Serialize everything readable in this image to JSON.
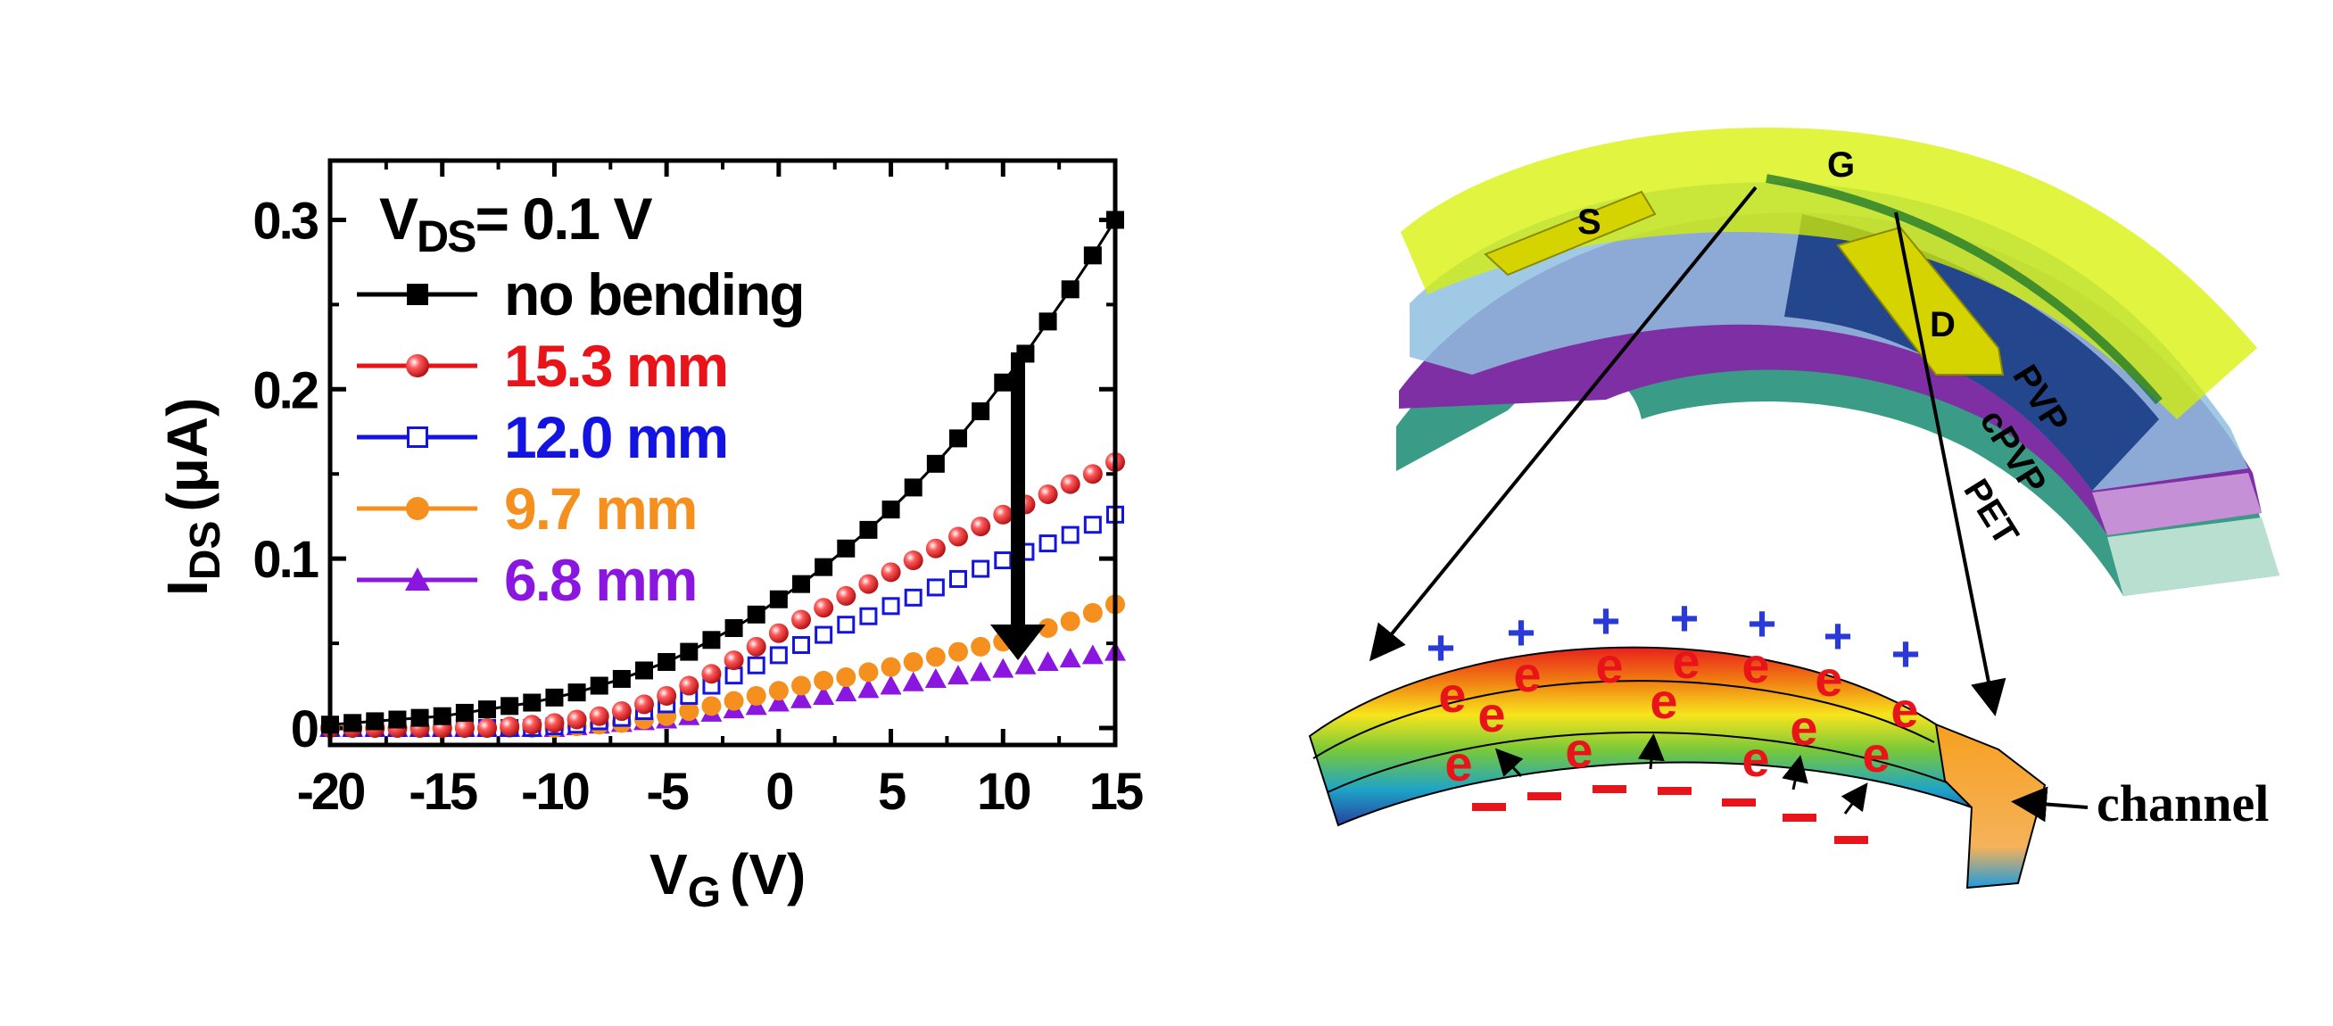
{
  "chart_data": {
    "type": "scatter",
    "title": "",
    "annotation": "= 0.1 V",
    "annotation_var": "V",
    "annotation_sub": "DS",
    "xlabel_var": "V",
    "xlabel_sub": "G",
    "xlabel_unit": "(V)",
    "ylabel_var": "I",
    "ylabel_sub": "DS",
    "ylabel_unit": "(μA)",
    "xlim": [
      -20,
      15
    ],
    "ylim": [
      -0.01,
      0.335
    ],
    "xticks": [
      -20,
      -15,
      -10,
      -5,
      0,
      5,
      10,
      15
    ],
    "xtick_labels": [
      "-20",
      "-15",
      "-10",
      "-5",
      "0",
      "5",
      "10",
      "15"
    ],
    "yticks": [
      0,
      0.1,
      0.2,
      0.3
    ],
    "ytick_labels": [
      "0",
      "0.1",
      "0.2",
      "0.3"
    ],
    "grid": false,
    "legend_position": "top-left",
    "x": [
      -20,
      -19,
      -18,
      -17,
      -16,
      -15,
      -14,
      -13,
      -12,
      -11,
      -10,
      -9,
      -8,
      -7,
      -6,
      -5,
      -4,
      -3,
      -2,
      -1,
      0,
      1,
      2,
      3,
      4,
      5,
      6,
      7,
      8,
      9,
      10,
      11,
      12,
      13,
      14,
      15
    ],
    "series": [
      {
        "name": "no bending",
        "color": "#000000",
        "marker": "square-filled",
        "values": [
          0.002,
          0.003,
          0.004,
          0.005,
          0.006,
          0.007,
          0.009,
          0.011,
          0.013,
          0.015,
          0.018,
          0.021,
          0.025,
          0.029,
          0.034,
          0.039,
          0.045,
          0.052,
          0.059,
          0.067,
          0.076,
          0.085,
          0.095,
          0.106,
          0.117,
          0.129,
          0.142,
          0.156,
          0.171,
          0.187,
          0.204,
          0.221,
          0.24,
          0.259,
          0.279,
          0.3
        ]
      },
      {
        "name": "15.3 mm",
        "color": "#e8141a",
        "marker": "sphere",
        "values": [
          0,
          0,
          0,
          0,
          0,
          0,
          0,
          0,
          0.001,
          0.002,
          0.003,
          0.005,
          0.007,
          0.01,
          0.014,
          0.019,
          0.025,
          0.032,
          0.04,
          0.048,
          0.056,
          0.064,
          0.071,
          0.078,
          0.085,
          0.092,
          0.099,
          0.106,
          0.113,
          0.119,
          0.126,
          0.132,
          0.138,
          0.144,
          0.15,
          0.157
        ]
      },
      {
        "name": "12.0 mm",
        "color": "#1414e0",
        "marker": "square-open",
        "values": [
          0,
          0,
          0,
          0,
          0,
          0,
          0,
          0,
          0,
          0,
          0.001,
          0.002,
          0.004,
          0.006,
          0.01,
          0.014,
          0.019,
          0.025,
          0.031,
          0.037,
          0.043,
          0.049,
          0.055,
          0.061,
          0.066,
          0.072,
          0.077,
          0.083,
          0.088,
          0.094,
          0.099,
          0.104,
          0.109,
          0.114,
          0.12,
          0.126
        ]
      },
      {
        "name": "9.7 mm",
        "color": "#f5901e",
        "marker": "circle-filled",
        "values": [
          0,
          0,
          0,
          0,
          0,
          0,
          0,
          0,
          0,
          0,
          0,
          0.001,
          0.002,
          0.003,
          0.005,
          0.007,
          0.01,
          0.013,
          0.016,
          0.019,
          0.022,
          0.025,
          0.028,
          0.03,
          0.033,
          0.036,
          0.039,
          0.042,
          0.045,
          0.048,
          0.051,
          0.055,
          0.059,
          0.063,
          0.068,
          0.073
        ]
      },
      {
        "name": "6.8 mm",
        "color": "#8a16e0",
        "marker": "triangle-filled",
        "values": [
          0,
          0,
          0,
          0,
          0,
          0,
          0,
          0,
          0,
          0,
          0,
          0.001,
          0.002,
          0.003,
          0.004,
          0.005,
          0.007,
          0.009,
          0.011,
          0.013,
          0.015,
          0.017,
          0.019,
          0.021,
          0.023,
          0.025,
          0.027,
          0.029,
          0.031,
          0.033,
          0.035,
          0.037,
          0.039,
          0.041,
          0.043,
          0.045
        ]
      }
    ]
  },
  "diagram": {
    "layer_labels": [
      "PVP",
      "cPVP",
      "PET"
    ],
    "electrode_labels": [
      "S",
      "G",
      "D"
    ],
    "channel_label": "channel",
    "electron_symbol": "e",
    "positive_symbol": "+",
    "negative_symbol": "—"
  },
  "colors": {
    "pet": "#3a9c86",
    "cpvp": "#7e2fa3",
    "pvp": "#12357f",
    "gate_dielectric": "#d6f000",
    "electrode": "#d6d400",
    "electron": "#e8141a",
    "positive_charge": "#2a3ad6",
    "negative_charge": "#e8141a"
  }
}
